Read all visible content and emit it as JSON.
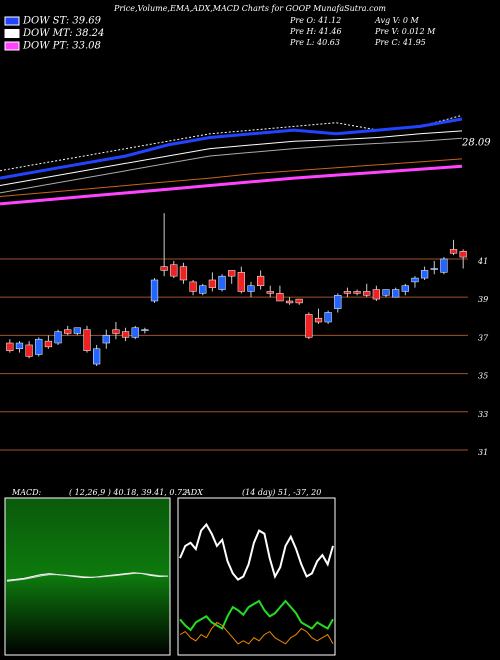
{
  "header": {
    "title": "Price,Volume,EMA,ADX,MACD Charts for GOOP MunafaSutra.com",
    "legend": [
      {
        "label": "DOW ST: 39.69",
        "color": "#2244ff"
      },
      {
        "label": "DOW MT: 38.24",
        "color": "#ffffff"
      },
      {
        "label": "DOW PT: 33.08",
        "color": "#ff44ff"
      }
    ],
    "stats": [
      "Pre   O: 41.12",
      "Avg V: 0  M",
      "Pre   H: 41.46",
      "Pre   V: 0.012  M",
      "Pre   L: 40.63",
      "Pre   C: 41.95"
    ]
  },
  "chart_data": [
    {
      "type": "line",
      "label": "28.09",
      "ylim": [
        17,
        38
      ],
      "series": [
        {
          "color": "#ffffff",
          "values": [
            23,
            24,
            25,
            26,
            27,
            28,
            28.5,
            29,
            29.5,
            28.5,
            29,
            30.5
          ],
          "dashed": true,
          "width": 1
        },
        {
          "color": "#2244ff",
          "values": [
            22,
            23,
            24,
            25,
            26.5,
            27.5,
            28,
            28.5,
            28,
            28.5,
            29,
            30
          ],
          "width": 3
        },
        {
          "color": "#ffffff",
          "values": [
            21,
            22,
            23,
            24,
            25,
            26,
            26.5,
            27,
            27.2,
            27.5,
            28,
            28.4
          ],
          "width": 1
        },
        {
          "color": "#aaaaaa",
          "values": [
            20,
            21,
            22,
            23,
            24,
            25,
            25.5,
            26,
            26.4,
            26.7,
            27,
            27.4
          ],
          "width": 1
        },
        {
          "color": "#c8641e",
          "values": [
            19.5,
            20,
            20.5,
            21,
            21.5,
            22,
            22.6,
            23,
            23.4,
            23.8,
            24.2,
            24.6
          ],
          "width": 1
        },
        {
          "color": "#ff44ff",
          "values": [
            18.5,
            19,
            19.5,
            20,
            20.5,
            21,
            21.5,
            22,
            22.4,
            22.8,
            23.2,
            23.6
          ],
          "width": 3
        }
      ]
    },
    {
      "type": "candlestick",
      "ylim": [
        29.43,
        43.04
      ],
      "yticks": [
        41,
        39,
        37,
        35,
        33,
        31
      ],
      "grid": true,
      "grid_color": "#a0522d",
      "up_color": "#2266ff",
      "down_color": "#ee2222",
      "open": [
        36.6,
        36.3,
        36.5,
        36.0,
        36.7,
        36.6,
        37.3,
        37.1,
        37.3,
        35.5,
        36.6,
        37.3,
        37.2,
        36.9,
        37.3,
        38.8,
        40.6,
        40.7,
        40.6,
        39.8,
        39.2,
        39.9,
        39.4,
        40.4,
        40.3,
        39.3,
        40.1,
        39.3,
        39.2,
        38.8,
        38.9,
        38.1,
        37.9,
        37.7,
        38.4,
        39.3,
        39.3,
        39.3,
        39.4,
        39.1,
        39.0,
        39.3,
        39.8,
        40.0,
        40.5,
        40.3,
        41.5,
        41.4
      ],
      "high": [
        36.8,
        36.7,
        36.7,
        36.9,
        37.0,
        37.3,
        37.5,
        37.4,
        37.5,
        36.5,
        37.3,
        37.7,
        37.4,
        37.5,
        37.4,
        40.0,
        43.4,
        40.9,
        40.8,
        39.9,
        39.7,
        40.3,
        40.2,
        40.4,
        40.6,
        39.8,
        40.4,
        39.6,
        39.6,
        39.0,
        38.9,
        38.2,
        38.4,
        38.3,
        39.2,
        39.5,
        39.4,
        39.7,
        39.6,
        39.4,
        39.5,
        39.7,
        40.1,
        40.6,
        40.9,
        41.1,
        42.0,
        41.5
      ],
      "low": [
        36.1,
        36.1,
        35.8,
        35.9,
        36.3,
        36.5,
        37.0,
        37.0,
        36.1,
        35.4,
        36.3,
        36.8,
        36.7,
        36.8,
        37.1,
        38.7,
        40.1,
        40.0,
        39.7,
        39.1,
        39.1,
        39.3,
        39.3,
        39.7,
        39.2,
        39.0,
        39.4,
        39.0,
        38.8,
        38.6,
        38.6,
        36.8,
        37.6,
        37.6,
        38.2,
        39.0,
        39.1,
        39.0,
        38.8,
        39.0,
        39.0,
        39.1,
        39.5,
        39.9,
        40.2,
        40.2,
        41.2,
        40.5
      ],
      "close": [
        36.2,
        36.6,
        35.9,
        36.8,
        36.4,
        37.2,
        37.1,
        37.4,
        36.2,
        36.3,
        37.0,
        37.1,
        36.9,
        37.4,
        37.3,
        39.9,
        40.4,
        40.1,
        39.9,
        39.3,
        39.6,
        39.5,
        40.1,
        40.1,
        39.3,
        39.6,
        39.6,
        39.2,
        38.8,
        38.7,
        38.7,
        36.9,
        37.7,
        38.2,
        39.1,
        39.2,
        39.2,
        39.1,
        38.9,
        39.4,
        39.4,
        39.6,
        40.0,
        40.4,
        40.5,
        41.0,
        41.3,
        41.1
      ]
    },
    {
      "type": "line",
      "title": "MACD:",
      "subtitle": "( 12,26,9 ) 40.18, 39.41, 0.72",
      "ylim": [
        0,
        80
      ],
      "series": [
        {
          "color": "#ffffff",
          "values": [
            38,
            38.5,
            39,
            40,
            41,
            41.5,
            41,
            40.5,
            40,
            39.5,
            39.5,
            40,
            40.5,
            41,
            41.5,
            42,
            41.5,
            40.5,
            40,
            40.2
          ],
          "width": 1
        },
        {
          "color": "#dddddd",
          "values": [
            37.5,
            38,
            38.6,
            39.4,
            40.3,
            41,
            41,
            40.7,
            40.3,
            39.9,
            39.6,
            39.8,
            40.2,
            40.6,
            41.1,
            41.6,
            41.6,
            41,
            40.4,
            40.2
          ],
          "width": 1
        }
      ]
    },
    {
      "type": "line",
      "title": "ADX",
      "subtitle": "(14 day) 51, -37, 20",
      "ylim": [
        0,
        100
      ],
      "series": [
        {
          "color": "#ffffff",
          "values": [
            62,
            70,
            72,
            68,
            80,
            84,
            78,
            70,
            74,
            60,
            52,
            48,
            50,
            58,
            72,
            80,
            78,
            62,
            50,
            56,
            70,
            76,
            68,
            58,
            50,
            52,
            60,
            64,
            58,
            70
          ],
          "width": 2
        },
        {
          "color": "#22dd22",
          "values": [
            22,
            18,
            15,
            20,
            22,
            24,
            20,
            18,
            16,
            24,
            30,
            28,
            25,
            30,
            32,
            34,
            28,
            24,
            26,
            30,
            34,
            30,
            26,
            20,
            18,
            16,
            20,
            18,
            16,
            22
          ],
          "width": 2
        },
        {
          "color": "#ee8800",
          "values": [
            12,
            14,
            10,
            8,
            12,
            10,
            16,
            20,
            18,
            14,
            10,
            6,
            8,
            6,
            10,
            8,
            12,
            14,
            10,
            8,
            6,
            10,
            12,
            16,
            14,
            10,
            8,
            10,
            12,
            6
          ],
          "width": 1
        }
      ]
    }
  ]
}
